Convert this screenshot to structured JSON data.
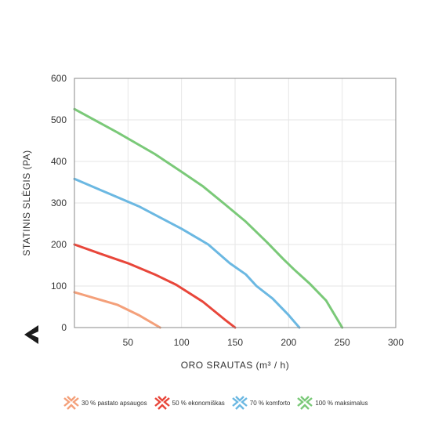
{
  "chart_data": {
    "type": "line",
    "xlabel": "ORO SRAUTAS (m³ / h)",
    "ylabel": "STATINIS SLĖGIS (PA)",
    "xlim": [
      0,
      300
    ],
    "ylim": [
      0,
      600
    ],
    "xticks": [
      "50",
      "100",
      "150",
      "200",
      "250",
      "300"
    ],
    "yticks": [
      "0",
      "100",
      "200",
      "300",
      "400",
      "500",
      "600"
    ],
    "grid": true,
    "legend_position": "bottom",
    "series": [
      {
        "name": "30 % pastato apsaugos",
        "color": "#f4a07a",
        "x": [
          0,
          20,
          40,
          60,
          80
        ],
        "y": [
          85,
          70,
          55,
          30,
          0
        ]
      },
      {
        "name": "50 % ekonomiškas",
        "color": "#e8463a",
        "x": [
          0,
          25,
          50,
          75,
          95,
          120,
          140,
          150
        ],
        "y": [
          200,
          177,
          155,
          128,
          103,
          62,
          20,
          0
        ]
      },
      {
        "name": "70 % komforto",
        "color": "#6bb8e2",
        "x": [
          0,
          30,
          60,
          80,
          100,
          125,
          145,
          160,
          170,
          185,
          200,
          210
        ],
        "y": [
          358,
          325,
          292,
          265,
          238,
          200,
          155,
          128,
          100,
          70,
          30,
          0
        ]
      },
      {
        "name": "100 % maksimalus",
        "color": "#7ac978",
        "x": [
          0,
          40,
          75,
          100,
          120,
          140,
          160,
          180,
          195,
          205,
          220,
          235,
          250
        ],
        "y": [
          526,
          470,
          418,
          375,
          340,
          298,
          255,
          205,
          165,
          140,
          105,
          65,
          0
        ]
      }
    ]
  }
}
